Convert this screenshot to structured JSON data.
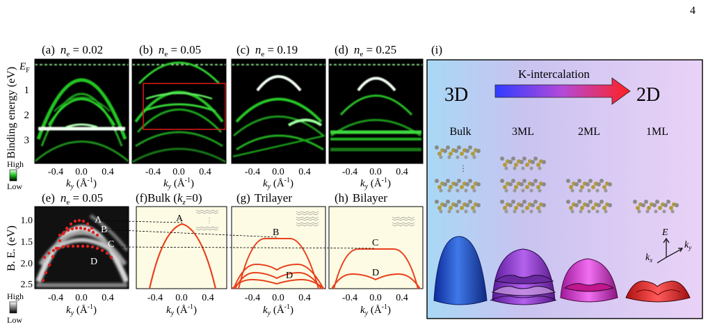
{
  "page_number": "4",
  "top_panels": [
    {
      "label": "(a)",
      "ne_value": "0.02"
    },
    {
      "label": "(b)",
      "ne_value": "0.05"
    },
    {
      "label": "(c)",
      "ne_value": "0.19"
    },
    {
      "label": "(d)",
      "ne_value": "0.25"
    }
  ],
  "ne_symbol": "n",
  "ne_subscript": "e",
  "ne_equals": " = ",
  "top_ylabel": "Binding energy (eV)",
  "ef_label": "E",
  "ef_subscript": "F",
  "top_yticks": [
    "1",
    "2",
    "3"
  ],
  "xticks": [
    "-0.4",
    "0.0",
    "0.4"
  ],
  "x_axis": {
    "k": "k",
    "sub": "y",
    "unit": " (Å",
    "sup": "-1",
    "close": ")"
  },
  "colorbar_top": {
    "high": "High",
    "low": "Low"
  },
  "colorbar_bottom": {
    "high": "High",
    "low": "Low"
  },
  "panel_e": {
    "label": "(e)",
    "ne_value": "0.05"
  },
  "bottom_ylabel": "B. E. (eV)",
  "bottom_yticks": [
    "1.0",
    "1.5",
    "2.0",
    "2.5"
  ],
  "band_labels": [
    "A",
    "B",
    "C",
    "D"
  ],
  "panel_f": {
    "label": "(f)",
    "title_pre": "Bulk (",
    "kz": "k",
    "kz_sub": "z",
    "title_post": "=0)"
  },
  "panel_g": {
    "label": "(g)",
    "title": "Trilayer"
  },
  "panel_h": {
    "label": "(h)",
    "title": "Bilayer"
  },
  "panel_i": {
    "label": "(i)",
    "arrow_label": "K-intercalation",
    "from": "3D",
    "to": "2D",
    "columns": [
      "Bulk",
      "3ML",
      "2ML",
      "1ML"
    ],
    "axis_E": "E",
    "axis_ky": "k",
    "axis_ky_sub": "y",
    "axis_kx": "k",
    "axis_kx_sub": "x"
  },
  "colors": {
    "band_red": "#e8401c",
    "dashed": "#ffffff",
    "roi_box": "#d11a1a",
    "calc_bg": "#fdfbe4",
    "dot_red": "#e02020"
  }
}
